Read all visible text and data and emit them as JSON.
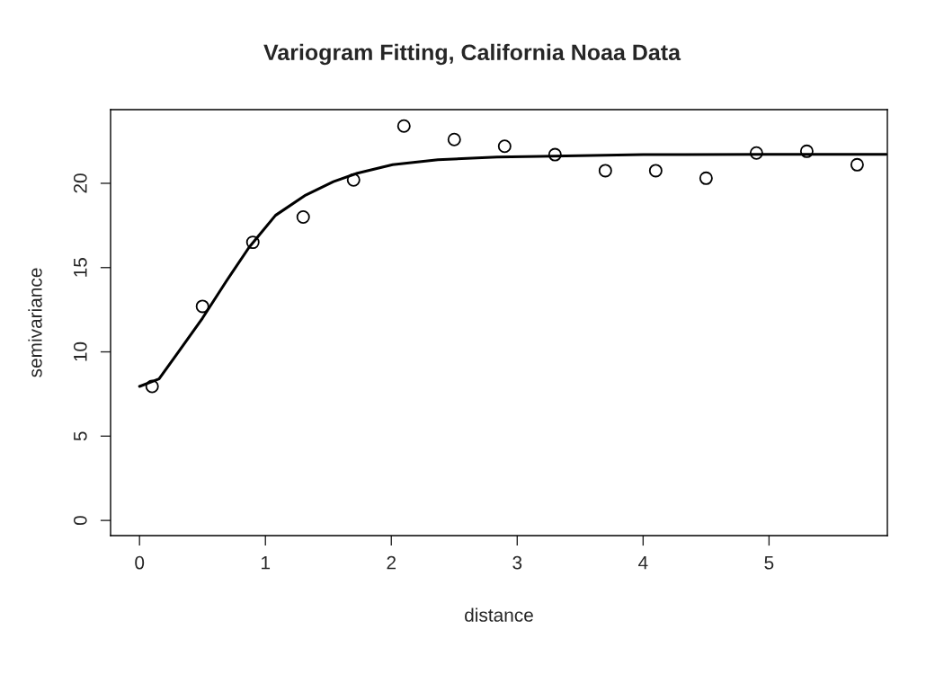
{
  "chart_data": {
    "type": "scatter",
    "title": "Variogram Fitting, California Noaa Data",
    "xlabel": "distance",
    "ylabel": "semivariance",
    "xlim": [
      -0.23,
      5.94
    ],
    "ylim": [
      -0.9,
      24.37
    ],
    "xticks": [
      0,
      1,
      2,
      3,
      4,
      5
    ],
    "yticks": [
      0,
      5,
      10,
      15,
      20
    ],
    "grid": false,
    "series": [
      {
        "color": "#000000",
        "marker": "circle",
        "x": [
          0.1,
          0.5,
          0.9,
          1.3,
          1.7,
          2.1,
          2.5,
          2.9,
          3.3,
          3.7,
          4.1,
          4.5,
          4.9,
          5.3,
          5.7
        ],
        "values": [
          7.95,
          12.7,
          16.5,
          18.0,
          20.2,
          23.4,
          22.6,
          22.2,
          21.7,
          20.75,
          20.75,
          20.3,
          21.8,
          21.9,
          21.1
        ]
      },
      {
        "type": "line",
        "color": "#000000",
        "marker": "none",
        "line_style": "solid",
        "x": [
          0,
          0.155,
          0.3,
          0.5,
          0.69,
          0.87,
          1.08,
          1.32,
          1.54,
          1.73,
          2.01,
          2.37,
          2.84,
          3.18,
          4.0,
          5.0,
          5.93
        ],
        "values": [
          7.95,
          8.4,
          9.9,
          12.0,
          14.2,
          16.2,
          18.1,
          19.3,
          20.1,
          20.6,
          21.1,
          21.4,
          21.56,
          21.6,
          21.7,
          21.72,
          21.72
        ]
      }
    ]
  }
}
